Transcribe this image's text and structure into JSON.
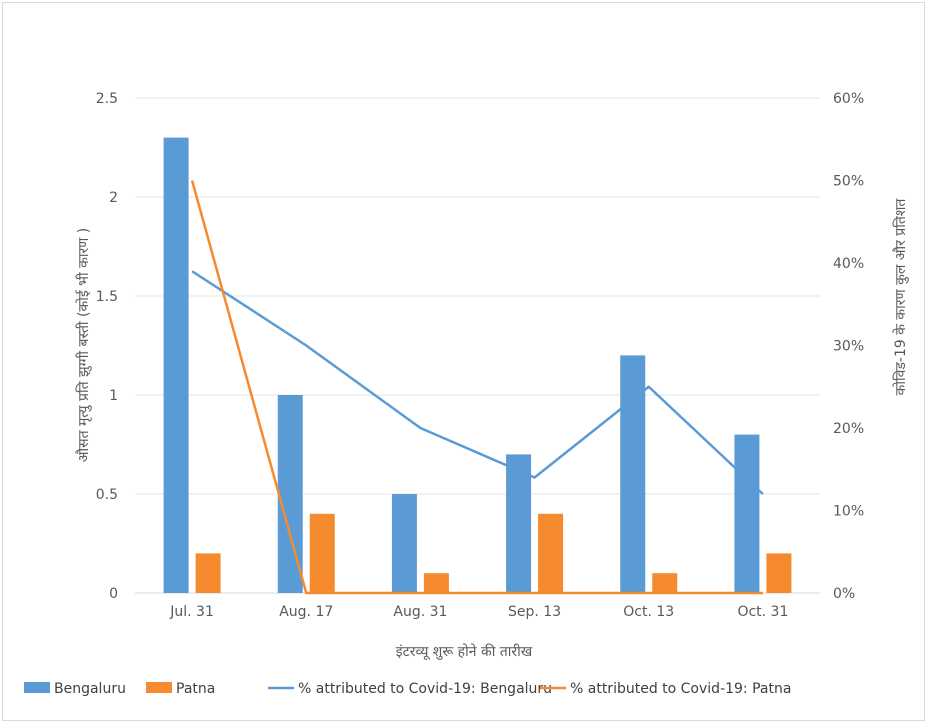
{
  "chart_data": {
    "type": "bar",
    "title": "",
    "xlabel": "इंटरव्यू शुरू होने की तारीख",
    "ylabel": "औसत मृत्यु प्रति झुग्गी बस्ती (कोई भी कारण )",
    "y2label": "कोविड-19 के कारण कुल और प्रतिशत",
    "categories": [
      "Jul. 31",
      "Aug. 17",
      "Aug. 31",
      "Sep. 13",
      "Oct. 13",
      "Oct. 31"
    ],
    "ylim": [
      0,
      2.5
    ],
    "y_ticks": [
      "0",
      "0.5",
      "1",
      "1.5",
      "2",
      "2.5"
    ],
    "y2lim": [
      0,
      60
    ],
    "y2_ticks": [
      "0%",
      "10%",
      "20%",
      "30%",
      "40%",
      "50%",
      "60%"
    ],
    "grid": true,
    "legend_position": "bottom",
    "series": [
      {
        "name": "Bengaluru",
        "type": "bar",
        "axis": "left",
        "color": "#5B9BD5",
        "values": [
          2.3,
          1.0,
          0.5,
          0.7,
          1.2,
          0.8
        ]
      },
      {
        "name": "Patna",
        "type": "bar",
        "axis": "left",
        "color": "#F58A2E",
        "values": [
          0.2,
          0.4,
          0.1,
          0.4,
          0.1,
          0.2
        ]
      },
      {
        "name": "% attributed to Covid-19: Bengaluru",
        "type": "line",
        "axis": "right",
        "color": "#5B9BD5",
        "values": [
          39,
          30,
          20,
          14,
          25,
          12
        ]
      },
      {
        "name": "% attributed to Covid-19: Patna",
        "type": "line",
        "axis": "right",
        "color": "#F58A2E",
        "values": [
          50,
          0,
          0,
          0,
          0,
          0
        ]
      }
    ]
  }
}
